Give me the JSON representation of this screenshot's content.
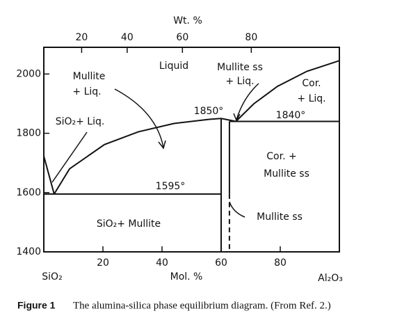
{
  "chart_data": {
    "type": "phase-diagram",
    "top_axis_title": "Wt. %",
    "x_title": "Mol. %",
    "x_left_label": "SiO₂",
    "x_right_label": "Al₂O₃",
    "xlim": [
      0,
      100
    ],
    "xticks": [
      20,
      40,
      60,
      80
    ],
    "x2ticks": [
      {
        "value": 12.8,
        "label": "20"
      },
      {
        "value": 28.2,
        "label": "40"
      },
      {
        "value": 46.9,
        "label": "60"
      },
      {
        "value": 70.2,
        "label": "80"
      }
    ],
    "ylim": [
      1400,
      2090
    ],
    "yticks": [
      1400,
      1600,
      1800,
      2000
    ],
    "color": "#111111",
    "series": [
      {
        "x": [
          0,
          3.5
        ],
        "values": [
          1723,
          1595
        ]
      },
      {
        "x": [
          3.5,
          8.7,
          20.5,
          32,
          44,
          56,
          60
        ],
        "values": [
          1595,
          1680,
          1762,
          1805,
          1833,
          1847,
          1850
        ]
      },
      {
        "x": [
          0,
          60
        ],
        "values": [
          1595,
          1595
        ]
      },
      {
        "x": [
          60,
          60
        ],
        "values": [
          1850,
          1400
        ]
      },
      {
        "x": [
          62.8,
          62.8
        ],
        "values": [
          1840,
          1595
        ]
      },
      {
        "x": [
          62.8,
          62.8
        ],
        "values": [
          1595,
          1400
        ],
        "dashed": true
      },
      {
        "x": [
          60,
          65
        ],
        "values": [
          1850,
          1840
        ]
      },
      {
        "x": [
          62.8,
          100
        ],
        "values": [
          1840,
          1840
        ]
      },
      {
        "x": [
          65,
          71,
          79,
          89,
          100
        ],
        "values": [
          1840,
          1899,
          1958,
          2009,
          2045
        ]
      }
    ],
    "annotations": [
      "Liquid",
      "Mullite",
      "+ Liq.",
      "Mullite ss",
      "+ Liq.",
      "Cor.",
      "+ Liq.",
      "SiO₂+ Liq.",
      "1850°",
      "1840°",
      "Cor. +",
      "Mullite ss",
      "1595°",
      "SiO₂+ Mullite",
      "Mullite ss"
    ],
    "caption_label": "Figure 1",
    "caption": "The alumina-silica phase equilibrium diagram. (From Ref. 2.)"
  }
}
